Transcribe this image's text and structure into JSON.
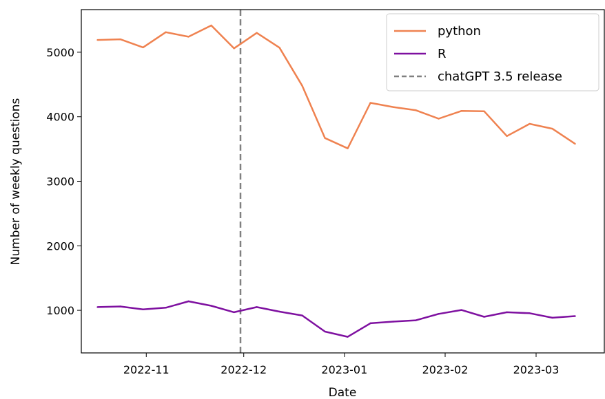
{
  "chart_data": {
    "type": "line",
    "xlabel": "Date",
    "ylabel": "Number of weekly questions",
    "x_ticks": [
      "2022-11",
      "2022-12",
      "2023-01",
      "2023-02",
      "2023-03"
    ],
    "y_ticks": [
      1000,
      2000,
      3000,
      4000,
      5000
    ],
    "xlim": [
      "2022-10-12",
      "2023-03-22"
    ],
    "ylim": [
      340,
      5660
    ],
    "x": [
      "2022-10-17",
      "2022-10-24",
      "2022-10-31",
      "2022-11-07",
      "2022-11-14",
      "2022-11-21",
      "2022-11-28",
      "2022-12-05",
      "2022-12-12",
      "2022-12-19",
      "2022-12-26",
      "2023-01-02",
      "2023-01-09",
      "2023-01-16",
      "2023-01-23",
      "2023-01-30",
      "2023-02-06",
      "2023-02-13",
      "2023-02-20",
      "2023-02-27",
      "2023-03-06",
      "2023-03-13"
    ],
    "series": [
      {
        "name": "python",
        "color": "#ef8250",
        "values": [
          5190,
          5200,
          5075,
          5310,
          5240,
          5415,
          5060,
          5300,
          5070,
          4480,
          3670,
          3510,
          4215,
          4150,
          4100,
          3970,
          4090,
          4085,
          3700,
          3890,
          3815,
          3580
        ]
      },
      {
        "name": "R",
        "color": "#7e10a0",
        "values": [
          1050,
          1060,
          1015,
          1040,
          1140,
          1070,
          970,
          1050,
          980,
          920,
          670,
          590,
          800,
          825,
          845,
          945,
          1005,
          900,
          970,
          955,
          885,
          910
        ]
      }
    ],
    "vline": {
      "date": "2022-11-30",
      "label": "chatGPT 3.5 release",
      "color": "#808080",
      "style": "dashed"
    },
    "legend_position": "top-right",
    "grid": false
  }
}
